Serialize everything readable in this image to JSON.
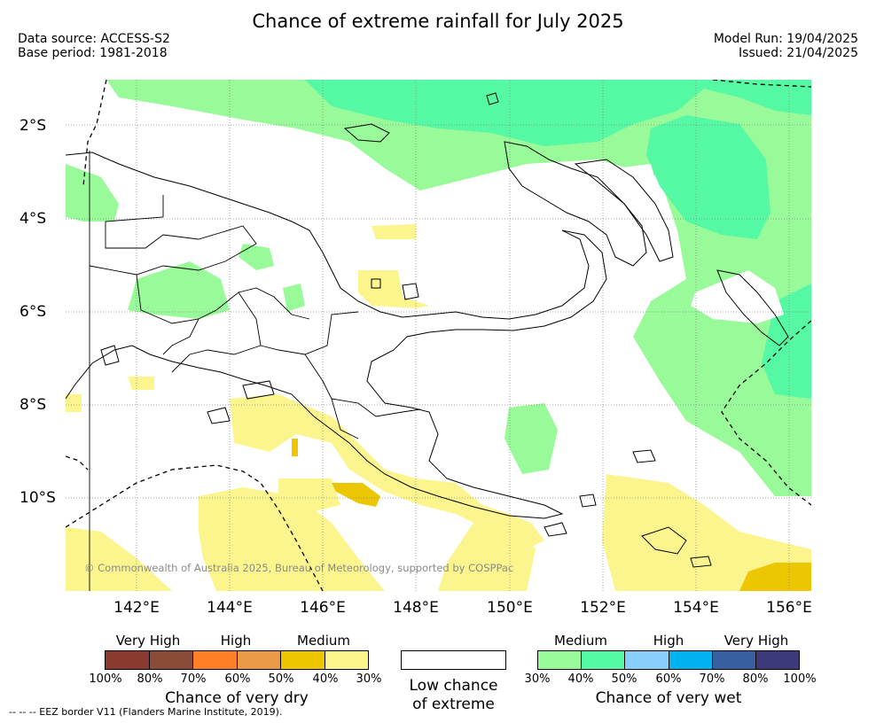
{
  "title": "Chance of extreme rainfall for July 2025",
  "meta": {
    "data_source": "Data source: ACCESS-S2",
    "base_period": "Base period: 1981-2018",
    "model_run": "Model Run: 19/04/2025",
    "issued": "Issued: 21/04/2025"
  },
  "map": {
    "lat_labels": [
      "2°S",
      "4°S",
      "6°S",
      "8°S",
      "10°S"
    ],
    "lon_labels": [
      "142°E",
      "144°E",
      "146°E",
      "148°E",
      "150°E",
      "152°E",
      "154°E",
      "156°E"
    ],
    "credit": "© Commonwealth of Australia 2025, Bureau of Meteorology, supported by COSPPac",
    "colors": {
      "wet_medium": "#99fa99",
      "wet_medium_high": "#55f8a3",
      "dry_medium": "#fcf58e",
      "dry_medium_high": "#ecc600"
    }
  },
  "legend": {
    "dry": {
      "categories": [
        "Very High",
        "High",
        "Medium"
      ],
      "colors": [
        "#8b3a30",
        "#8a4b38",
        "#fe7f26",
        "#eb9a48",
        "#eec600",
        "#fcf58e"
      ],
      "percents": [
        "100%",
        "80%",
        "70%",
        "60%",
        "50%",
        "40%",
        "30%"
      ],
      "title": "Chance of very dry"
    },
    "low": {
      "title_line1": "Low chance",
      "title_line2": "of extreme"
    },
    "wet": {
      "categories": [
        "Medium",
        "High",
        "Very High"
      ],
      "colors": [
        "#99fa99",
        "#55f8a3",
        "#87cefa",
        "#00b2ed",
        "#3860a0",
        "#3d3a7a"
      ],
      "percents": [
        "30%",
        "40%",
        "50%",
        "60%",
        "70%",
        "80%",
        "100%"
      ],
      "title": "Chance of very wet"
    }
  },
  "footer": "--  --  -- EEZ border V11 (Flanders Marine Institute, 2019)."
}
